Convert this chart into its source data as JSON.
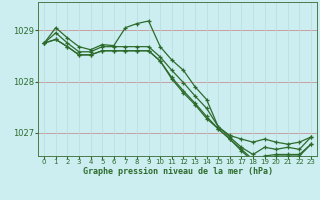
{
  "xlabel": "Graphe pression niveau de la mer (hPa)",
  "bg_color": "#cceef0",
  "line_color": "#2d6b2d",
  "marker_color": "#2d6b2d",
  "grid_color_v": "#b8dde0",
  "grid_color_h": "#c8a0a0",
  "ylim": [
    1026.55,
    1029.55
  ],
  "xlim": [
    -0.5,
    23.5
  ],
  "yticks": [
    1027,
    1028,
    1029
  ],
  "xticks": [
    0,
    1,
    2,
    3,
    4,
    5,
    6,
    7,
    8,
    9,
    10,
    11,
    12,
    13,
    14,
    15,
    16,
    17,
    18,
    19,
    20,
    21,
    22,
    23
  ],
  "series": [
    {
      "x": [
        0,
        1,
        2,
        3,
        4,
        5,
        6,
        7,
        8,
        9,
        10,
        11,
        12,
        13,
        14,
        15,
        16,
        17,
        18,
        19,
        20,
        21,
        22,
        23
      ],
      "y": [
        1028.75,
        1029.05,
        1028.85,
        1028.68,
        1028.62,
        1028.72,
        1028.7,
        1029.05,
        1029.13,
        1029.18,
        1028.68,
        1028.42,
        1028.22,
        1027.9,
        1027.65,
        1027.12,
        1026.95,
        1026.88,
        1026.82,
        1026.88,
        1026.82,
        1026.78,
        1026.82,
        1026.92
      ]
    },
    {
      "x": [
        0,
        1,
        2,
        3,
        4,
        5,
        6,
        7,
        8,
        9,
        10,
        11,
        12,
        13,
        14,
        15,
        16,
        17,
        18,
        19,
        20,
        21,
        22,
        23
      ],
      "y": [
        1028.75,
        1028.95,
        1028.75,
        1028.58,
        1028.58,
        1028.68,
        1028.68,
        1028.68,
        1028.68,
        1028.68,
        1028.48,
        1028.22,
        1027.98,
        1027.72,
        1027.48,
        1027.12,
        1026.92,
        1026.72,
        1026.58,
        1026.72,
        1026.68,
        1026.72,
        1026.68,
        1026.92
      ]
    },
    {
      "x": [
        0,
        1,
        2,
        3,
        4,
        5,
        6,
        7,
        8,
        9,
        10,
        11,
        12,
        13,
        14,
        15,
        16,
        17,
        18,
        19,
        20,
        21,
        22,
        23
      ],
      "y": [
        1028.75,
        1028.82,
        1028.68,
        1028.52,
        1028.52,
        1028.6,
        1028.6,
        1028.6,
        1028.6,
        1028.6,
        1028.4,
        1028.08,
        1027.82,
        1027.58,
        1027.32,
        1027.08,
        1026.88,
        1026.68,
        1026.48,
        1026.55,
        1026.58,
        1026.58,
        1026.58,
        1026.78
      ]
    },
    {
      "x": [
        0,
        1,
        2,
        3,
        4,
        5,
        6,
        7,
        8,
        9,
        10,
        11,
        12,
        13,
        14,
        15,
        16,
        17,
        18,
        19,
        20,
        21,
        22,
        23
      ],
      "y": [
        1028.75,
        1028.82,
        1028.68,
        1028.52,
        1028.52,
        1028.6,
        1028.6,
        1028.6,
        1028.6,
        1028.6,
        1028.4,
        1028.05,
        1027.78,
        1027.55,
        1027.28,
        1027.08,
        1026.88,
        1026.65,
        1026.45,
        1026.52,
        1026.55,
        1026.55,
        1026.55,
        1026.78
      ]
    }
  ]
}
